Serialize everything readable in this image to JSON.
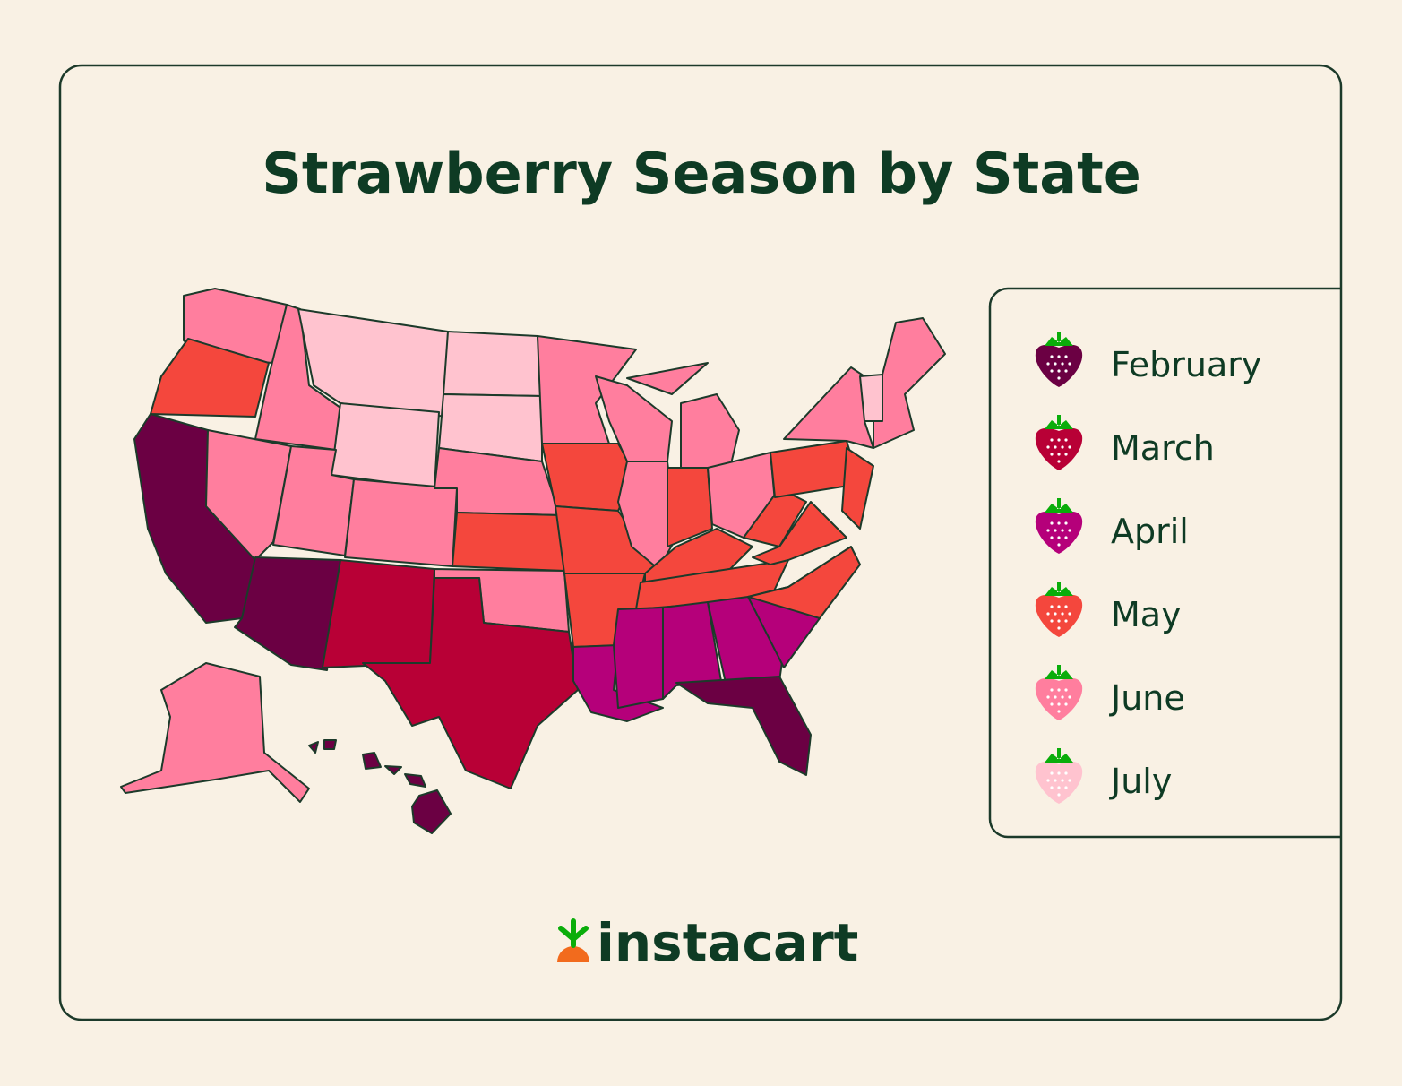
{
  "title": "Strawberry Season by State",
  "legend": [
    {
      "label": "February",
      "color": "#6b0043"
    },
    {
      "label": "March",
      "color": "#b80036"
    },
    {
      "label": "April",
      "color": "#b5007a"
    },
    {
      "label": "May",
      "color": "#f4473d"
    },
    {
      "label": "June",
      "color": "#ff7e9e"
    },
    {
      "label": "July",
      "color": "#ffc3cf"
    }
  ],
  "brand": "instacart"
}
